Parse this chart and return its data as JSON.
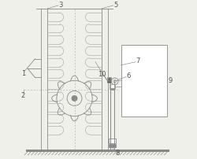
{
  "bg_color": "#f0f0eb",
  "line_color": "#aaaaaa",
  "line_color_dark": "#888888",
  "figsize": [
    2.5,
    2.02
  ],
  "dpi": 100,
  "label_fontsize": 6.0,
  "label_color": "#555555"
}
